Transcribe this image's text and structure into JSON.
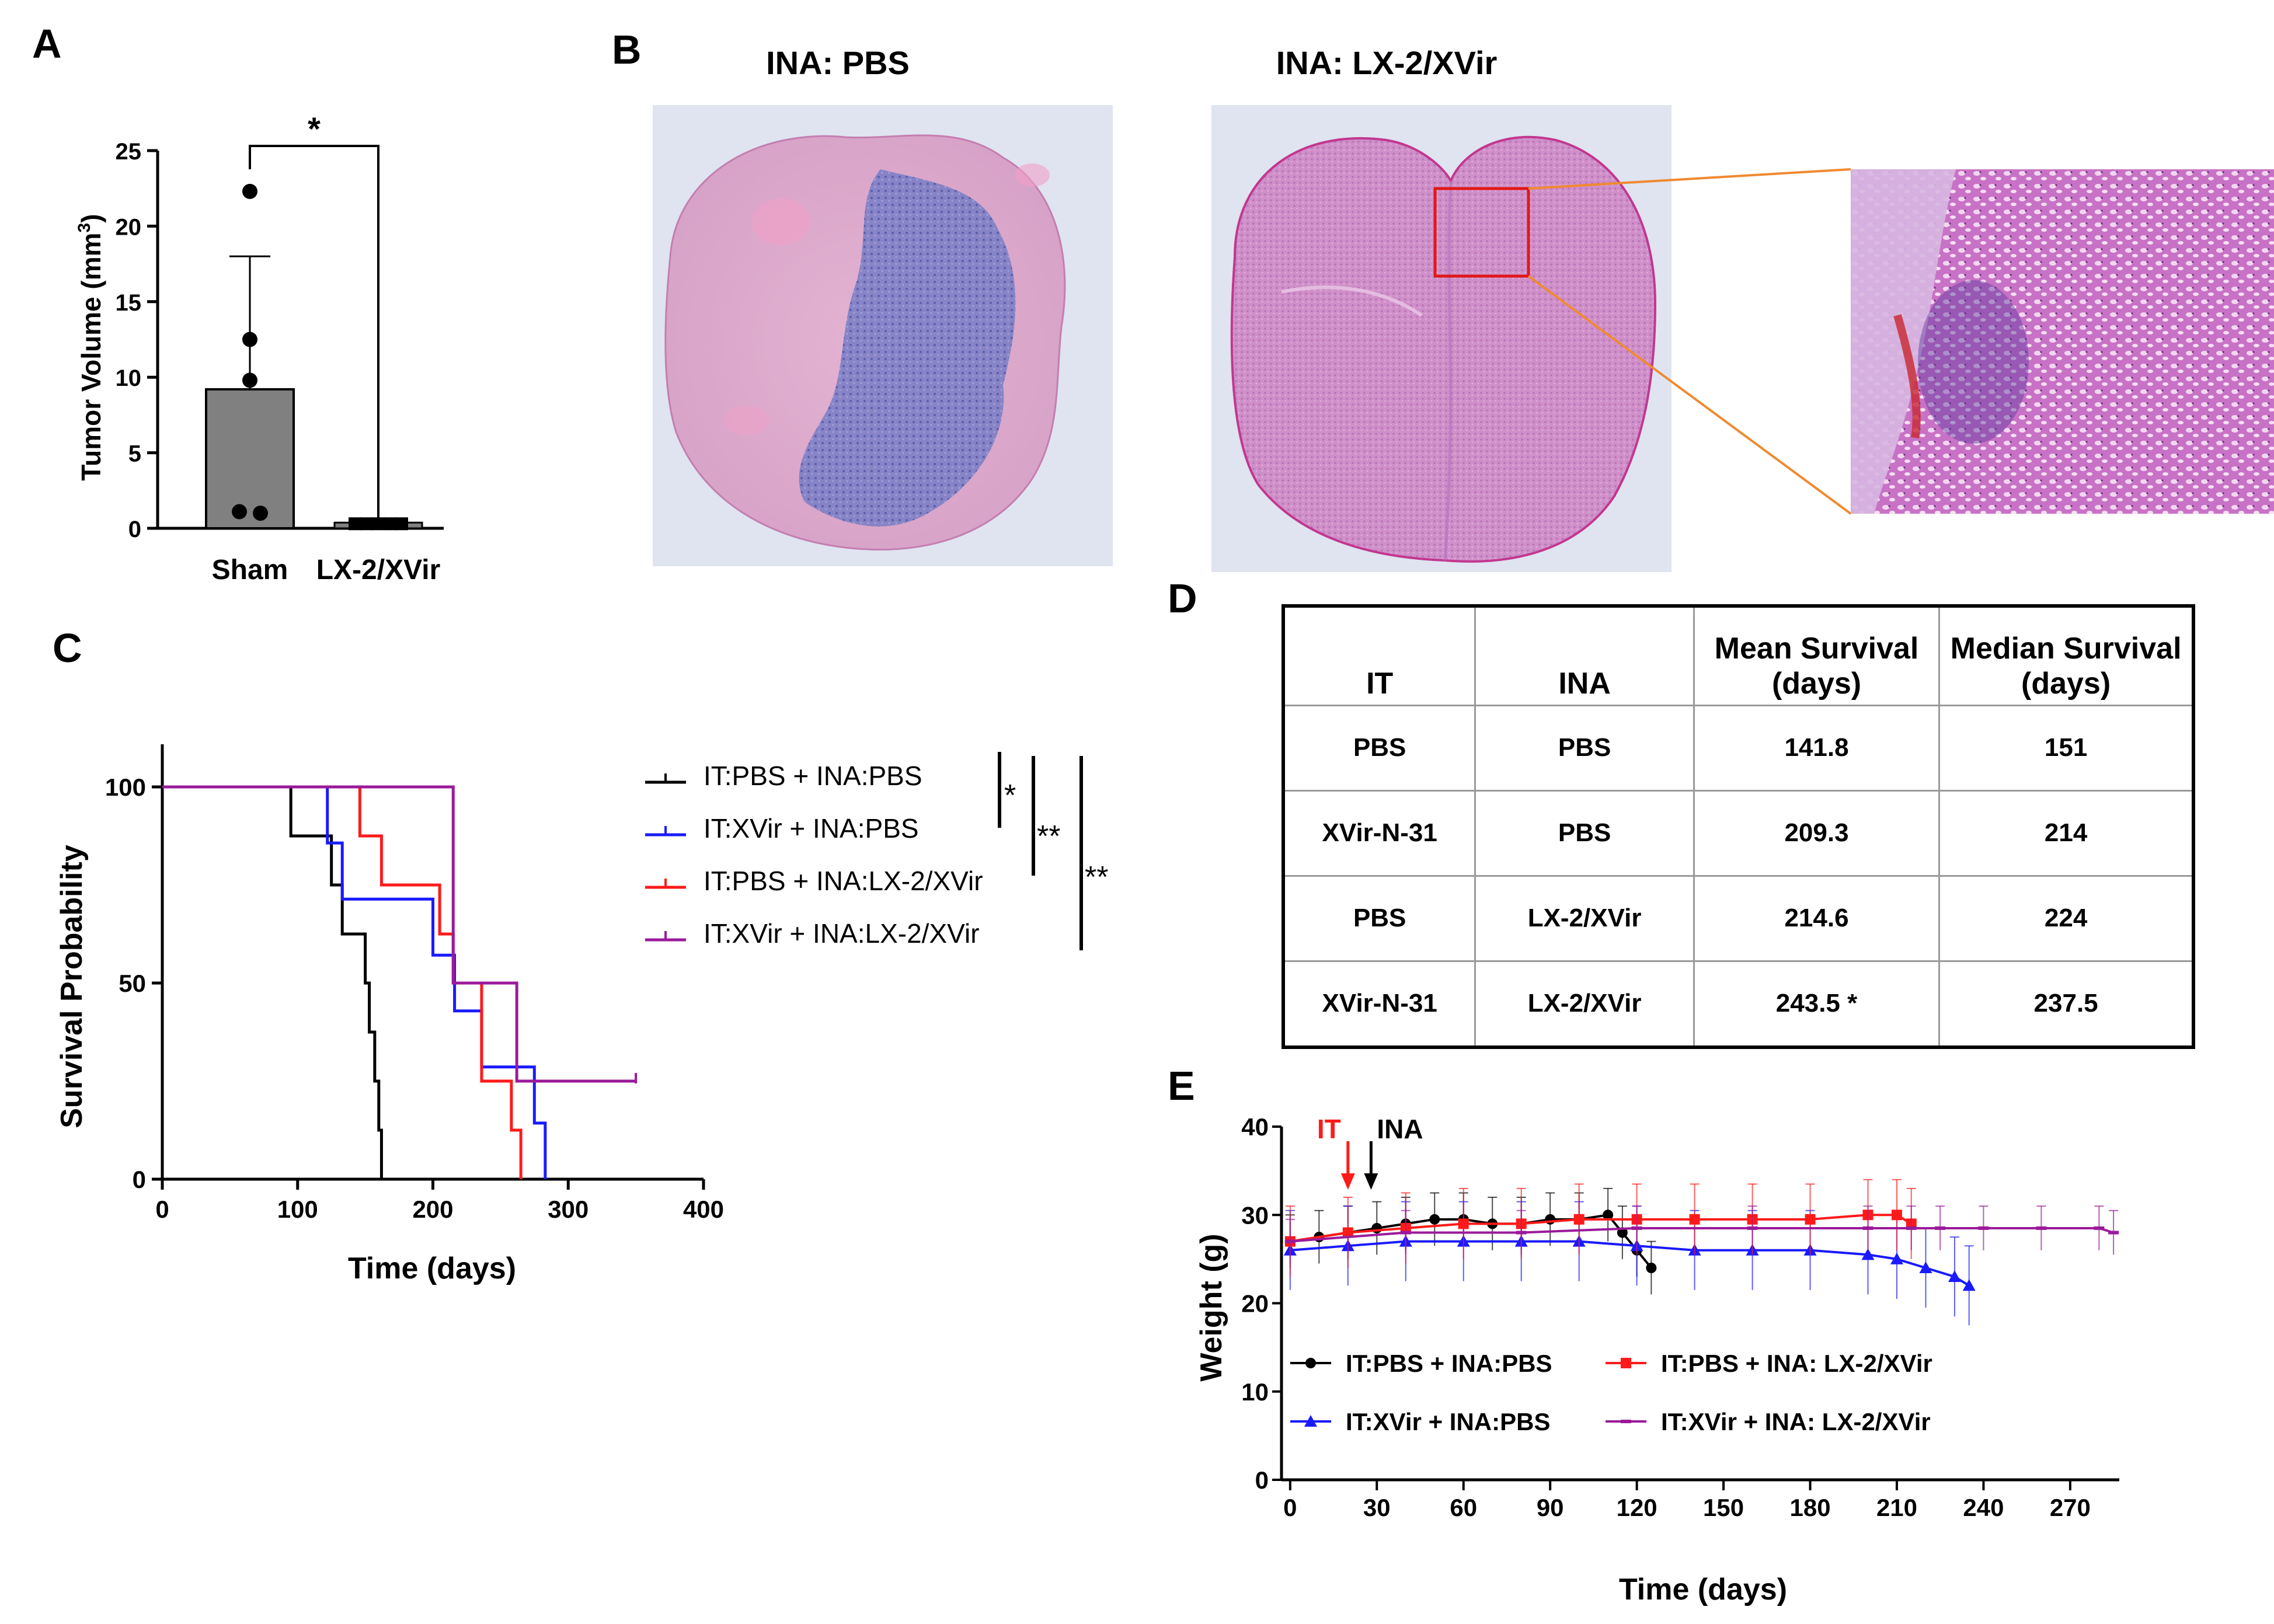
{
  "panels": {
    "a": "A",
    "b": "B",
    "c": "C",
    "d": "D",
    "e": "E"
  },
  "colors": {
    "black": "#000000",
    "blue": "#1a1aff",
    "red": "#ff1a1a",
    "purple": "#9b1a9b",
    "bar_fill": "#808080",
    "inset_box": "#e01818",
    "connector": "#f08a30"
  },
  "histology": {
    "title_left": "INA: PBS",
    "title_right": "INA: LX-2/XVir"
  },
  "chart_data": [
    {
      "panel": "A",
      "type": "bar",
      "categories": [
        "Sham",
        "LX-2/XVir"
      ],
      "values": [
        9.2,
        0.3
      ],
      "error_upper": [
        18.0,
        null
      ],
      "points": [
        [
          22.3,
          12.5,
          9.8,
          1.1,
          1.0
        ],
        [
          0.3,
          0.3,
          0.3,
          0.3,
          0.3
        ]
      ],
      "ylabel": "Tumor Volume (mm",
      "ylabel_sup": "3",
      "ylabel_end": ")",
      "ylim": [
        0,
        25
      ],
      "yticks": [
        "0",
        "5",
        "10",
        "15",
        "20",
        "25"
      ],
      "significance": "*"
    },
    {
      "panel": "C",
      "type": "line",
      "subtype": "kaplan-meier",
      "xlabel": "Time (days)",
      "ylabel": "Survival Probability",
      "xlim": [
        0,
        400
      ],
      "ylim": [
        0,
        100
      ],
      "xticks": [
        "0",
        "100",
        "200",
        "300",
        "400"
      ],
      "yticks": [
        "0",
        "50",
        "100"
      ],
      "series": [
        {
          "name": "IT:PBS + INA:PBS",
          "color": "#000000",
          "steps": [
            [
              0,
              100
            ],
            [
              95,
              87.5
            ],
            [
              125,
              75
            ],
            [
              133,
              62.5
            ],
            [
              150,
              50
            ],
            [
              153,
              37.5
            ],
            [
              157,
              25
            ],
            [
              160,
              12.5
            ],
            [
              162,
              0
            ]
          ]
        },
        {
          "name": "IT:XVir + INA:PBS",
          "color": "#1a1aff",
          "steps": [
            [
              0,
              100
            ],
            [
              122,
              85.7
            ],
            [
              133,
              71.4
            ],
            [
              200,
              57.1
            ],
            [
              216,
              42.9
            ],
            [
              236,
              28.6
            ],
            [
              275,
              14.3
            ],
            [
              283,
              0
            ]
          ]
        },
        {
          "name": "IT:PBS + INA:LX-2/XVir",
          "color": "#ff1a1a",
          "steps": [
            [
              0,
              100
            ],
            [
              128,
              100
            ],
            [
              146,
              87.5
            ],
            [
              162,
              75
            ],
            [
              205,
              62.5
            ],
            [
              215,
              50
            ],
            [
              236,
              25
            ],
            [
              258,
              12.5
            ],
            [
              265,
              0
            ]
          ]
        },
        {
          "name": "IT:XVir + INA:LX-2/XVir",
          "color": "#9b1a9b",
          "steps": [
            [
              0,
              100
            ],
            [
              215,
              50
            ],
            [
              262,
              25
            ],
            [
              350,
              25
            ]
          ]
        }
      ],
      "significance": [
        "*",
        "**",
        "**"
      ]
    },
    {
      "panel": "D",
      "type": "table",
      "columns": [
        "IT",
        "INA",
        "Mean Survival (days)",
        "Median Survival (days)"
      ],
      "header_lines": [
        [
          "IT"
        ],
        [
          "INA"
        ],
        [
          "Mean Survival",
          "(days)"
        ],
        [
          "Median Survival",
          "(days)"
        ]
      ],
      "rows": [
        [
          "PBS",
          "PBS",
          "141.8",
          "151"
        ],
        [
          "XVir-N-31",
          "PBS",
          "209.3",
          "214"
        ],
        [
          "PBS",
          "LX-2/XVir",
          "214.6",
          "224"
        ],
        [
          "XVir-N-31",
          "LX-2/XVir",
          "243.5 *",
          "237.5"
        ]
      ]
    },
    {
      "panel": "E",
      "type": "line",
      "xlabel": "Time (days)",
      "ylabel": "Weight (g)",
      "xlim": [
        -3,
        287
      ],
      "ylim": [
        0,
        40
      ],
      "xticks": [
        "0",
        "30",
        "60",
        "90",
        "120",
        "150",
        "180",
        "210",
        "240",
        "270"
      ],
      "yticks": [
        "0",
        "10",
        "20",
        "30",
        "40"
      ],
      "markers": [
        {
          "label": "IT",
          "day": 20,
          "color": "#ff1a1a"
        },
        {
          "label": "INA",
          "day": 28,
          "color": "#000000"
        }
      ],
      "series": [
        {
          "name": "IT:PBS + INA:PBS",
          "color": "#000000",
          "marker": "circle",
          "x": [
            0,
            10,
            20,
            30,
            40,
            50,
            60,
            70,
            80,
            90,
            100,
            110,
            115,
            120,
            125
          ],
          "y": [
            27,
            27.5,
            28,
            28.5,
            29,
            29.5,
            29.5,
            29,
            29,
            29.5,
            29.5,
            30,
            28,
            26,
            24
          ],
          "err": 3
        },
        {
          "name": "IT:XVir + INA:PBS",
          "color": "#1a1aff",
          "marker": "triangle",
          "x": [
            0,
            20,
            40,
            60,
            80,
            100,
            120,
            140,
            160,
            180,
            200,
            210,
            220,
            230,
            235
          ],
          "y": [
            26,
            26.5,
            27,
            27,
            27,
            27,
            26.5,
            26,
            26,
            26,
            25.5,
            25,
            24,
            23,
            22
          ],
          "err": 4.5
        },
        {
          "name": "IT:PBS + INA: LX-2/XVir",
          "color": "#ff1a1a",
          "marker": "square",
          "x": [
            0,
            20,
            40,
            60,
            80,
            100,
            120,
            140,
            160,
            180,
            200,
            210,
            215
          ],
          "y": [
            27,
            28,
            28.5,
            29,
            29,
            29.5,
            29.5,
            29.5,
            29.5,
            29.5,
            30,
            30,
            29
          ],
          "err": 4
        },
        {
          "name": "IT:XVir + INA: LX-2/XVir",
          "color": "#9b1a9b",
          "marker": "dash",
          "x": [
            0,
            40,
            80,
            120,
            160,
            200,
            215,
            225,
            240,
            260,
            280,
            285
          ],
          "y": [
            27,
            28,
            28,
            28.5,
            28.5,
            28.5,
            28.5,
            28.5,
            28.5,
            28.5,
            28.5,
            28
          ],
          "err": 2.5
        }
      ]
    }
  ]
}
